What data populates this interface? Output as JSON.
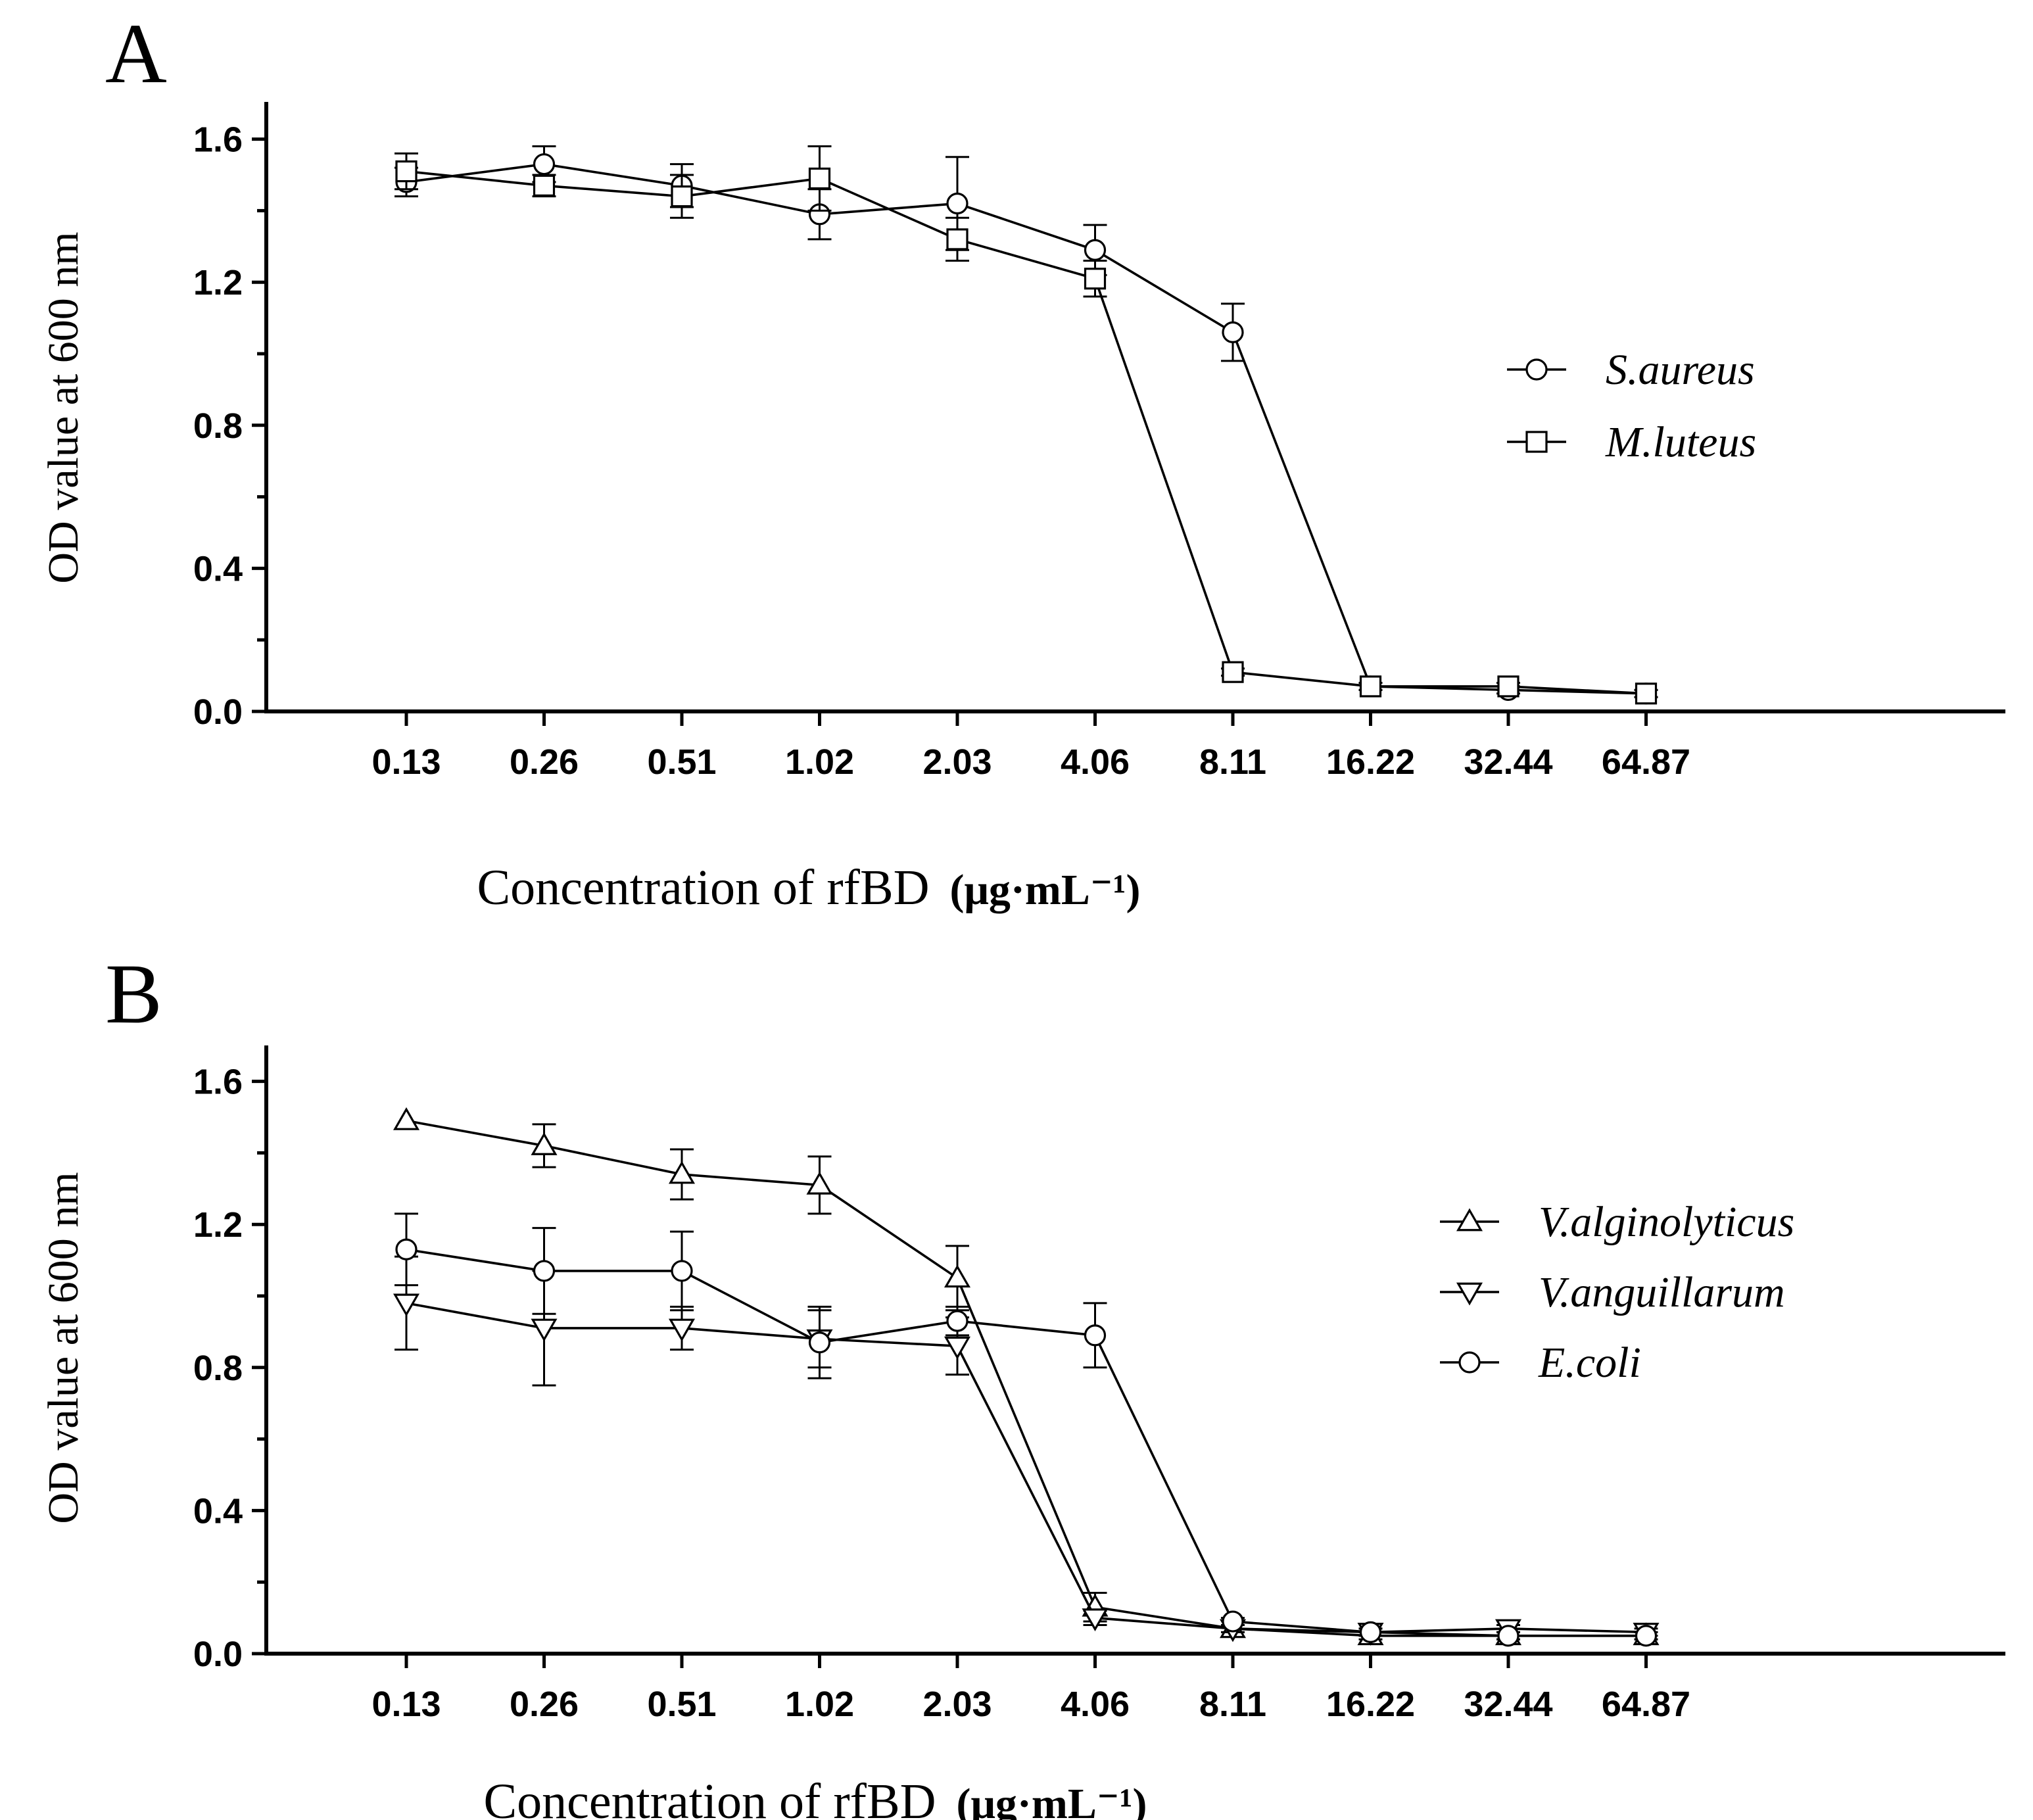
{
  "chart_data": [
    {
      "panel": "A",
      "type": "line",
      "xlabel_main": "Concentration of rfBD",
      "xlabel_unit": "(μg·mL⁻¹)",
      "ylabel": "OD value at 600 nm",
      "categories": [
        "0.13",
        "0.26",
        "0.51",
        "1.02",
        "2.03",
        "4.06",
        "8.11",
        "16.22",
        "32.44",
        "64.87"
      ],
      "ylim": [
        0,
        1.7
      ],
      "yticks": [
        "0.0",
        "0.4",
        "0.8",
        "1.2",
        "1.6"
      ],
      "series": [
        {
          "name": "S.aureus",
          "marker": "circle",
          "values": [
            1.48,
            1.53,
            1.47,
            1.39,
            1.42,
            1.29,
            1.06,
            0.07,
            0.06,
            0.05
          ],
          "errors": [
            0.04,
            0.05,
            0.06,
            0.07,
            0.13,
            0.07,
            0.08,
            0.01,
            0.01,
            0.01
          ]
        },
        {
          "name": "M.luteus",
          "marker": "square",
          "values": [
            1.51,
            1.47,
            1.44,
            1.49,
            1.32,
            1.21,
            0.11,
            0.07,
            0.07,
            0.05
          ],
          "errors": [
            0.05,
            0.03,
            0.06,
            0.09,
            0.06,
            0.05,
            0.01,
            0.01,
            0.01,
            0.01
          ]
        }
      ]
    },
    {
      "panel": "B",
      "type": "line",
      "xlabel_main": "Concentration of rfBD",
      "xlabel_unit": "(μg·mL⁻¹)",
      "ylabel": "OD value at 600 nm",
      "categories": [
        "0.13",
        "0.26",
        "0.51",
        "1.02",
        "2.03",
        "4.06",
        "8.11",
        "16.22",
        "32.44",
        "64.87"
      ],
      "ylim": [
        0,
        1.7
      ],
      "yticks": [
        "0.0",
        "0.4",
        "0.8",
        "1.2",
        "1.6"
      ],
      "series": [
        {
          "name": "V.alginolyticus",
          "marker": "triangle-up",
          "values": [
            1.49,
            1.42,
            1.34,
            1.31,
            1.05,
            0.13,
            0.07,
            0.05,
            0.05,
            0.05
          ],
          "errors": [
            0.0,
            0.06,
            0.07,
            0.08,
            0.09,
            0.04,
            0.01,
            0.01,
            0.01,
            0.01
          ]
        },
        {
          "name": "V.anguillarum",
          "marker": "triangle-down",
          "values": [
            0.98,
            0.91,
            0.91,
            0.88,
            0.86,
            0.1,
            0.07,
            0.06,
            0.07,
            0.06
          ],
          "errors": [
            0.13,
            0.16,
            0.06,
            0.08,
            0.08,
            0.02,
            0.01,
            0.01,
            0.01,
            0.01
          ]
        },
        {
          "name": "E.coli",
          "marker": "circle",
          "values": [
            1.13,
            1.07,
            1.07,
            0.87,
            0.93,
            0.89,
            0.09,
            0.06,
            0.05,
            0.05
          ],
          "errors": [
            0.1,
            0.12,
            0.11,
            0.1,
            0.04,
            0.09,
            0.01,
            0.01,
            0.01,
            0.01
          ]
        }
      ]
    }
  ]
}
